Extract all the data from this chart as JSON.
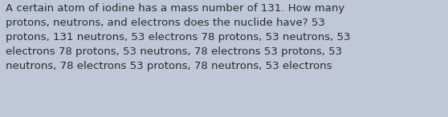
{
  "text": "A certain atom of iodine has a mass number of 131. How many\nprotons, neutrons, and electrons does the nuclide have? 53\nprotons, 131 neutrons, 53 electrons 78 protons, 53 neutrons, 53\nelectrons 78 protons, 53 neutrons, 78 electrons 53 protons, 53\nneutrons, 78 electrons 53 protons, 78 neutrons, 53 electrons",
  "background_color": "#bfc8d6",
  "text_color": "#2b2b2b",
  "font_size": 9.5,
  "fig_width": 5.58,
  "fig_height": 1.46,
  "dpi": 100
}
